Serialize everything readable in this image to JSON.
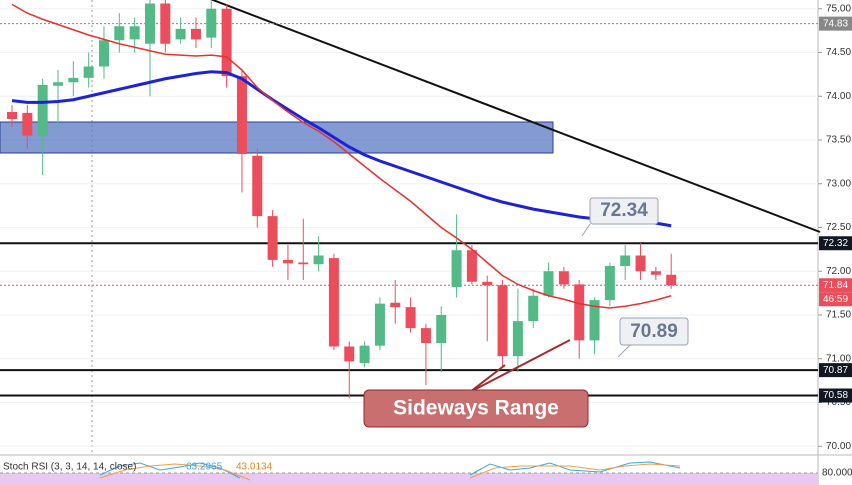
{
  "chart_data": {
    "type": "candlestick",
    "ylim": [
      69.9,
      75.1
    ],
    "yticks": [
      {
        "value": 70,
        "label": "70.00"
      },
      {
        "value": 70.5,
        "label": "70.50"
      },
      {
        "value": 71,
        "label": "71.00"
      },
      {
        "value": 71.5,
        "label": "71.50"
      },
      {
        "value": 72,
        "label": "72.00"
      },
      {
        "value": 72.5,
        "label": "72.50"
      },
      {
        "value": 73,
        "label": "73.00"
      },
      {
        "value": 73.5,
        "label": "73.50"
      },
      {
        "value": 74,
        "label": "74.00"
      },
      {
        "value": 74.5,
        "label": "74.50"
      },
      {
        "value": 75,
        "label": "75.00"
      }
    ],
    "up_color": "#53b987",
    "down_color": "#eb4d5c",
    "open": [
      73.82,
      73.81,
      73.55,
      74.12,
      74.16,
      74.21,
      74.34,
      74.64,
      74.65,
      74.6,
      75.06,
      74.65,
      74.77,
      74.67,
      75.0,
      74.23,
      73.32,
      72.63,
      72.13,
      72.1,
      72.08,
      72.15,
      71.14,
      70.95,
      71.15,
      71.64,
      71.59,
      71.35,
      71.18,
      71.82,
      72.24,
      71.88,
      71.84,
      71.03,
      71.43,
      71.72,
      72.0,
      71.85,
      71.21,
      71.67,
      72.06,
      72.18,
      72.0,
      71.96
    ],
    "high": [
      73.9,
      73.9,
      74.2,
      74.3,
      74.4,
      74.5,
      74.8,
      74.95,
      74.9,
      75.1,
      75.1,
      74.9,
      74.9,
      75.1,
      75.05,
      74.3,
      73.4,
      72.7,
      72.3,
      72.6,
      72.4,
      72.2,
      71.2,
      71.2,
      71.7,
      71.9,
      71.7,
      71.4,
      71.6,
      72.65,
      72.3,
      71.95,
      71.9,
      71.8,
      71.8,
      72.1,
      72.05,
      71.9,
      71.7,
      72.1,
      72.3,
      72.32,
      72.05,
      72.2
    ],
    "low": [
      73.65,
      73.4,
      73.1,
      73.6,
      74.0,
      74.1,
      74.2,
      74.5,
      74.5,
      74.0,
      74.5,
      74.6,
      74.55,
      74.55,
      74.1,
      72.9,
      72.5,
      72.05,
      71.9,
      71.9,
      72.0,
      71.1,
      70.55,
      70.9,
      71.1,
      71.4,
      71.3,
      70.7,
      70.85,
      71.7,
      71.85,
      71.2,
      70.9,
      70.85,
      71.35,
      71.7,
      71.8,
      71.0,
      71.05,
      71.6,
      71.9,
      71.9,
      71.9,
      71.8
    ],
    "close": [
      73.74,
      73.55,
      74.13,
      74.16,
      74.21,
      74.34,
      74.64,
      74.8,
      74.8,
      75.06,
      74.6,
      74.77,
      74.65,
      75.0,
      74.23,
      73.34,
      72.63,
      72.13,
      72.09,
      72.08,
      72.18,
      71.14,
      70.97,
      71.15,
      71.63,
      71.59,
      71.35,
      71.18,
      71.5,
      72.24,
      71.88,
      71.84,
      71.03,
      71.43,
      71.72,
      72.0,
      71.85,
      71.21,
      71.67,
      72.06,
      72.18,
      72.0,
      71.96,
      71.84
    ],
    "series": [
      {
        "color": "#1e22d6",
        "values": [
          73.95,
          73.93,
          73.93,
          73.94,
          73.96,
          74.0,
          74.04,
          74.08,
          74.12,
          74.16,
          74.2,
          74.23,
          74.26,
          74.28,
          74.27,
          74.2,
          74.08,
          73.96,
          73.85,
          73.74,
          73.64,
          73.53,
          73.42,
          73.33,
          73.26,
          73.2,
          73.14,
          73.08,
          73.02,
          72.96,
          72.9,
          72.84,
          72.79,
          72.75,
          72.71,
          72.68,
          72.65,
          72.62,
          72.6,
          72.59,
          72.57,
          72.56,
          72.55,
          72.52
        ]
      },
      {
        "color": "#e8322f",
        "values": [
          75.05,
          74.95,
          74.88,
          74.82,
          74.76,
          74.7,
          74.65,
          74.6,
          74.56,
          74.52,
          74.48,
          74.47,
          74.46,
          74.47,
          74.45,
          74.3,
          74.1,
          73.95,
          73.82,
          73.7,
          73.6,
          73.48,
          73.34,
          73.2,
          73.06,
          72.93,
          72.8,
          72.65,
          72.5,
          72.38,
          72.25,
          72.1,
          71.95,
          71.85,
          71.78,
          71.72,
          71.68,
          71.63,
          71.6,
          71.58,
          71.6,
          71.63,
          71.67,
          71.72
        ]
      }
    ],
    "price_tags": [
      74.83,
      72.32,
      71.84,
      70.87,
      70.58
    ],
    "countdown": "46:59",
    "annotations": [
      "72.34",
      "70.89",
      "Sideways Range"
    ],
    "indicator": {
      "label": "Stoch RSI (3, 3, 14, 14, close)",
      "k": "63.2965",
      "d": "43.0134",
      "level": "80.0000"
    }
  }
}
